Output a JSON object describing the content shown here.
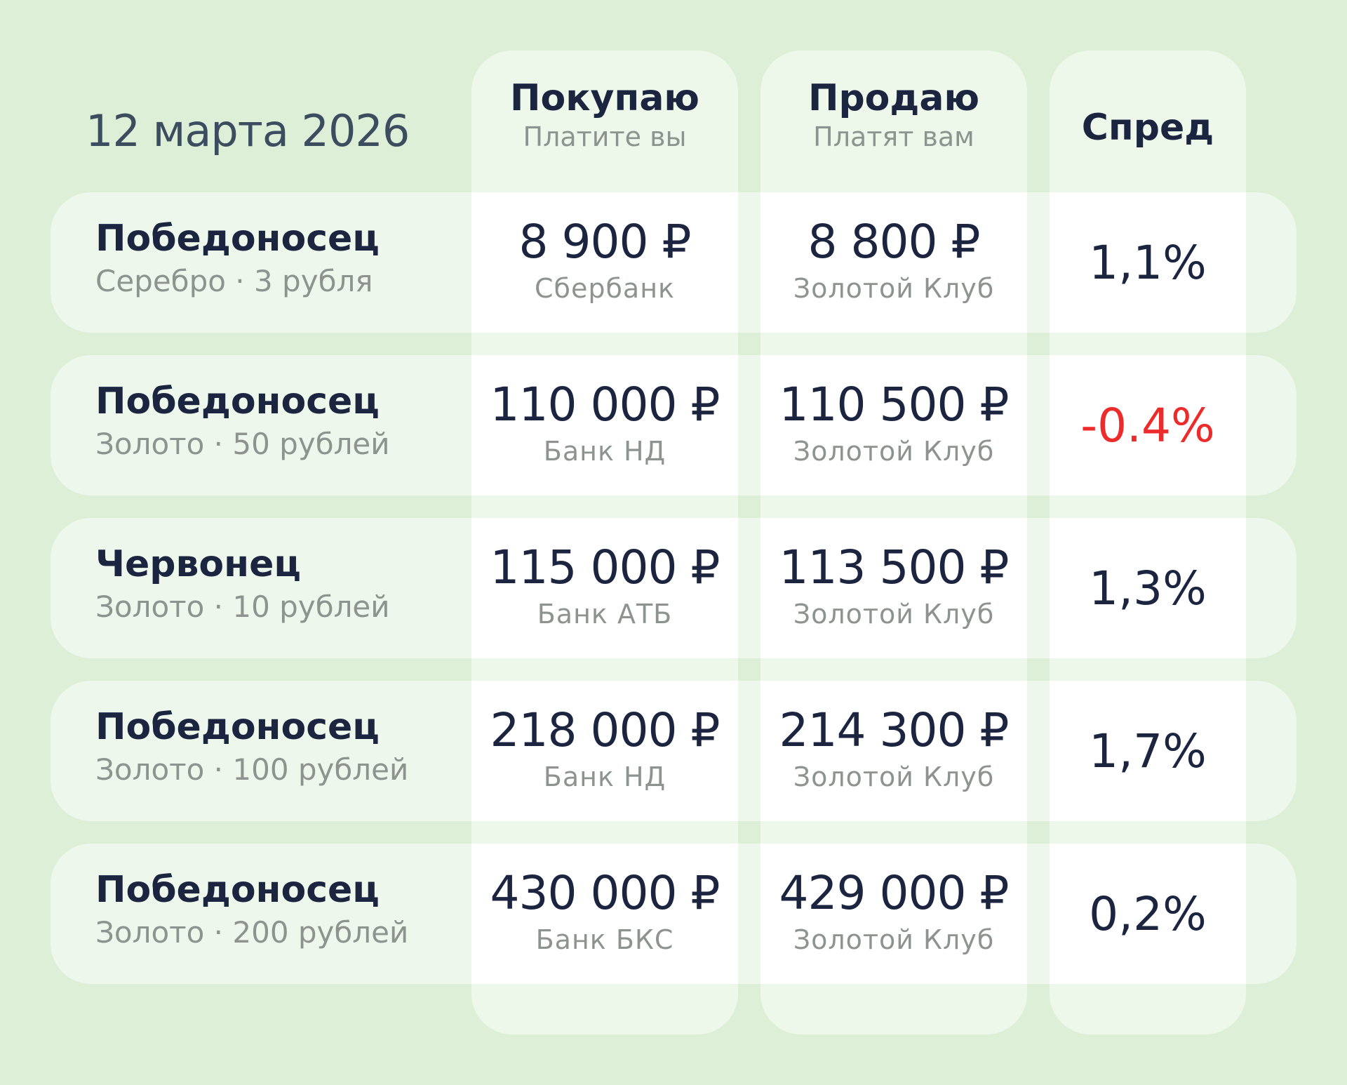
{
  "date": "12 марта 2026",
  "columns": {
    "buy": {
      "title": "Покупаю",
      "subtitle": "Платите вы"
    },
    "sell": {
      "title": "Продаю",
      "subtitle": "Платят вам"
    },
    "spread": {
      "title": "Спред"
    }
  },
  "rows": [
    {
      "coin": "Победоносец",
      "sub": "Серебро · 3  рубля",
      "buy_price": "8 900 ₽",
      "buy_bank": "Сбербанк",
      "sell_price": "8 800 ₽",
      "sell_bank": "Золотой Клуб",
      "spread": "1,1%"
    },
    {
      "coin": "Победоносец",
      "sub": "Золото · 50  рублей",
      "buy_price": "110 000 ₽",
      "buy_bank": "Банк НД",
      "sell_price": "110 500 ₽",
      "sell_bank": "Золотой Клуб",
      "spread": "-0.4%"
    },
    {
      "coin": "Червонец",
      "sub": "Золото · 10  рублей",
      "buy_price": "115 000 ₽",
      "buy_bank": "Банк АТБ",
      "sell_price": "113 500 ₽",
      "sell_bank": "Золотой Клуб",
      "spread": "1,3%"
    },
    {
      "coin": "Победоносец",
      "sub": "Золото · 100  рублей",
      "buy_price": "218 000 ₽",
      "buy_bank": "Банк НД",
      "sell_price": "214 300 ₽",
      "sell_bank": "Золотой Клуб",
      "spread": "1,7%"
    },
    {
      "coin": "Победоносец",
      "sub": "Золото · 200  рублей",
      "buy_price": "430 000 ₽",
      "buy_bank": "Банк БКС",
      "sell_price": "429 000 ₽",
      "sell_bank": "Золотой Клуб",
      "spread": "0,2%"
    }
  ],
  "colors": {
    "background": "#ddf0d7",
    "text_primary": "#1c2540",
    "text_secondary": "#8d948f",
    "negative": "#ec2b2b"
  }
}
